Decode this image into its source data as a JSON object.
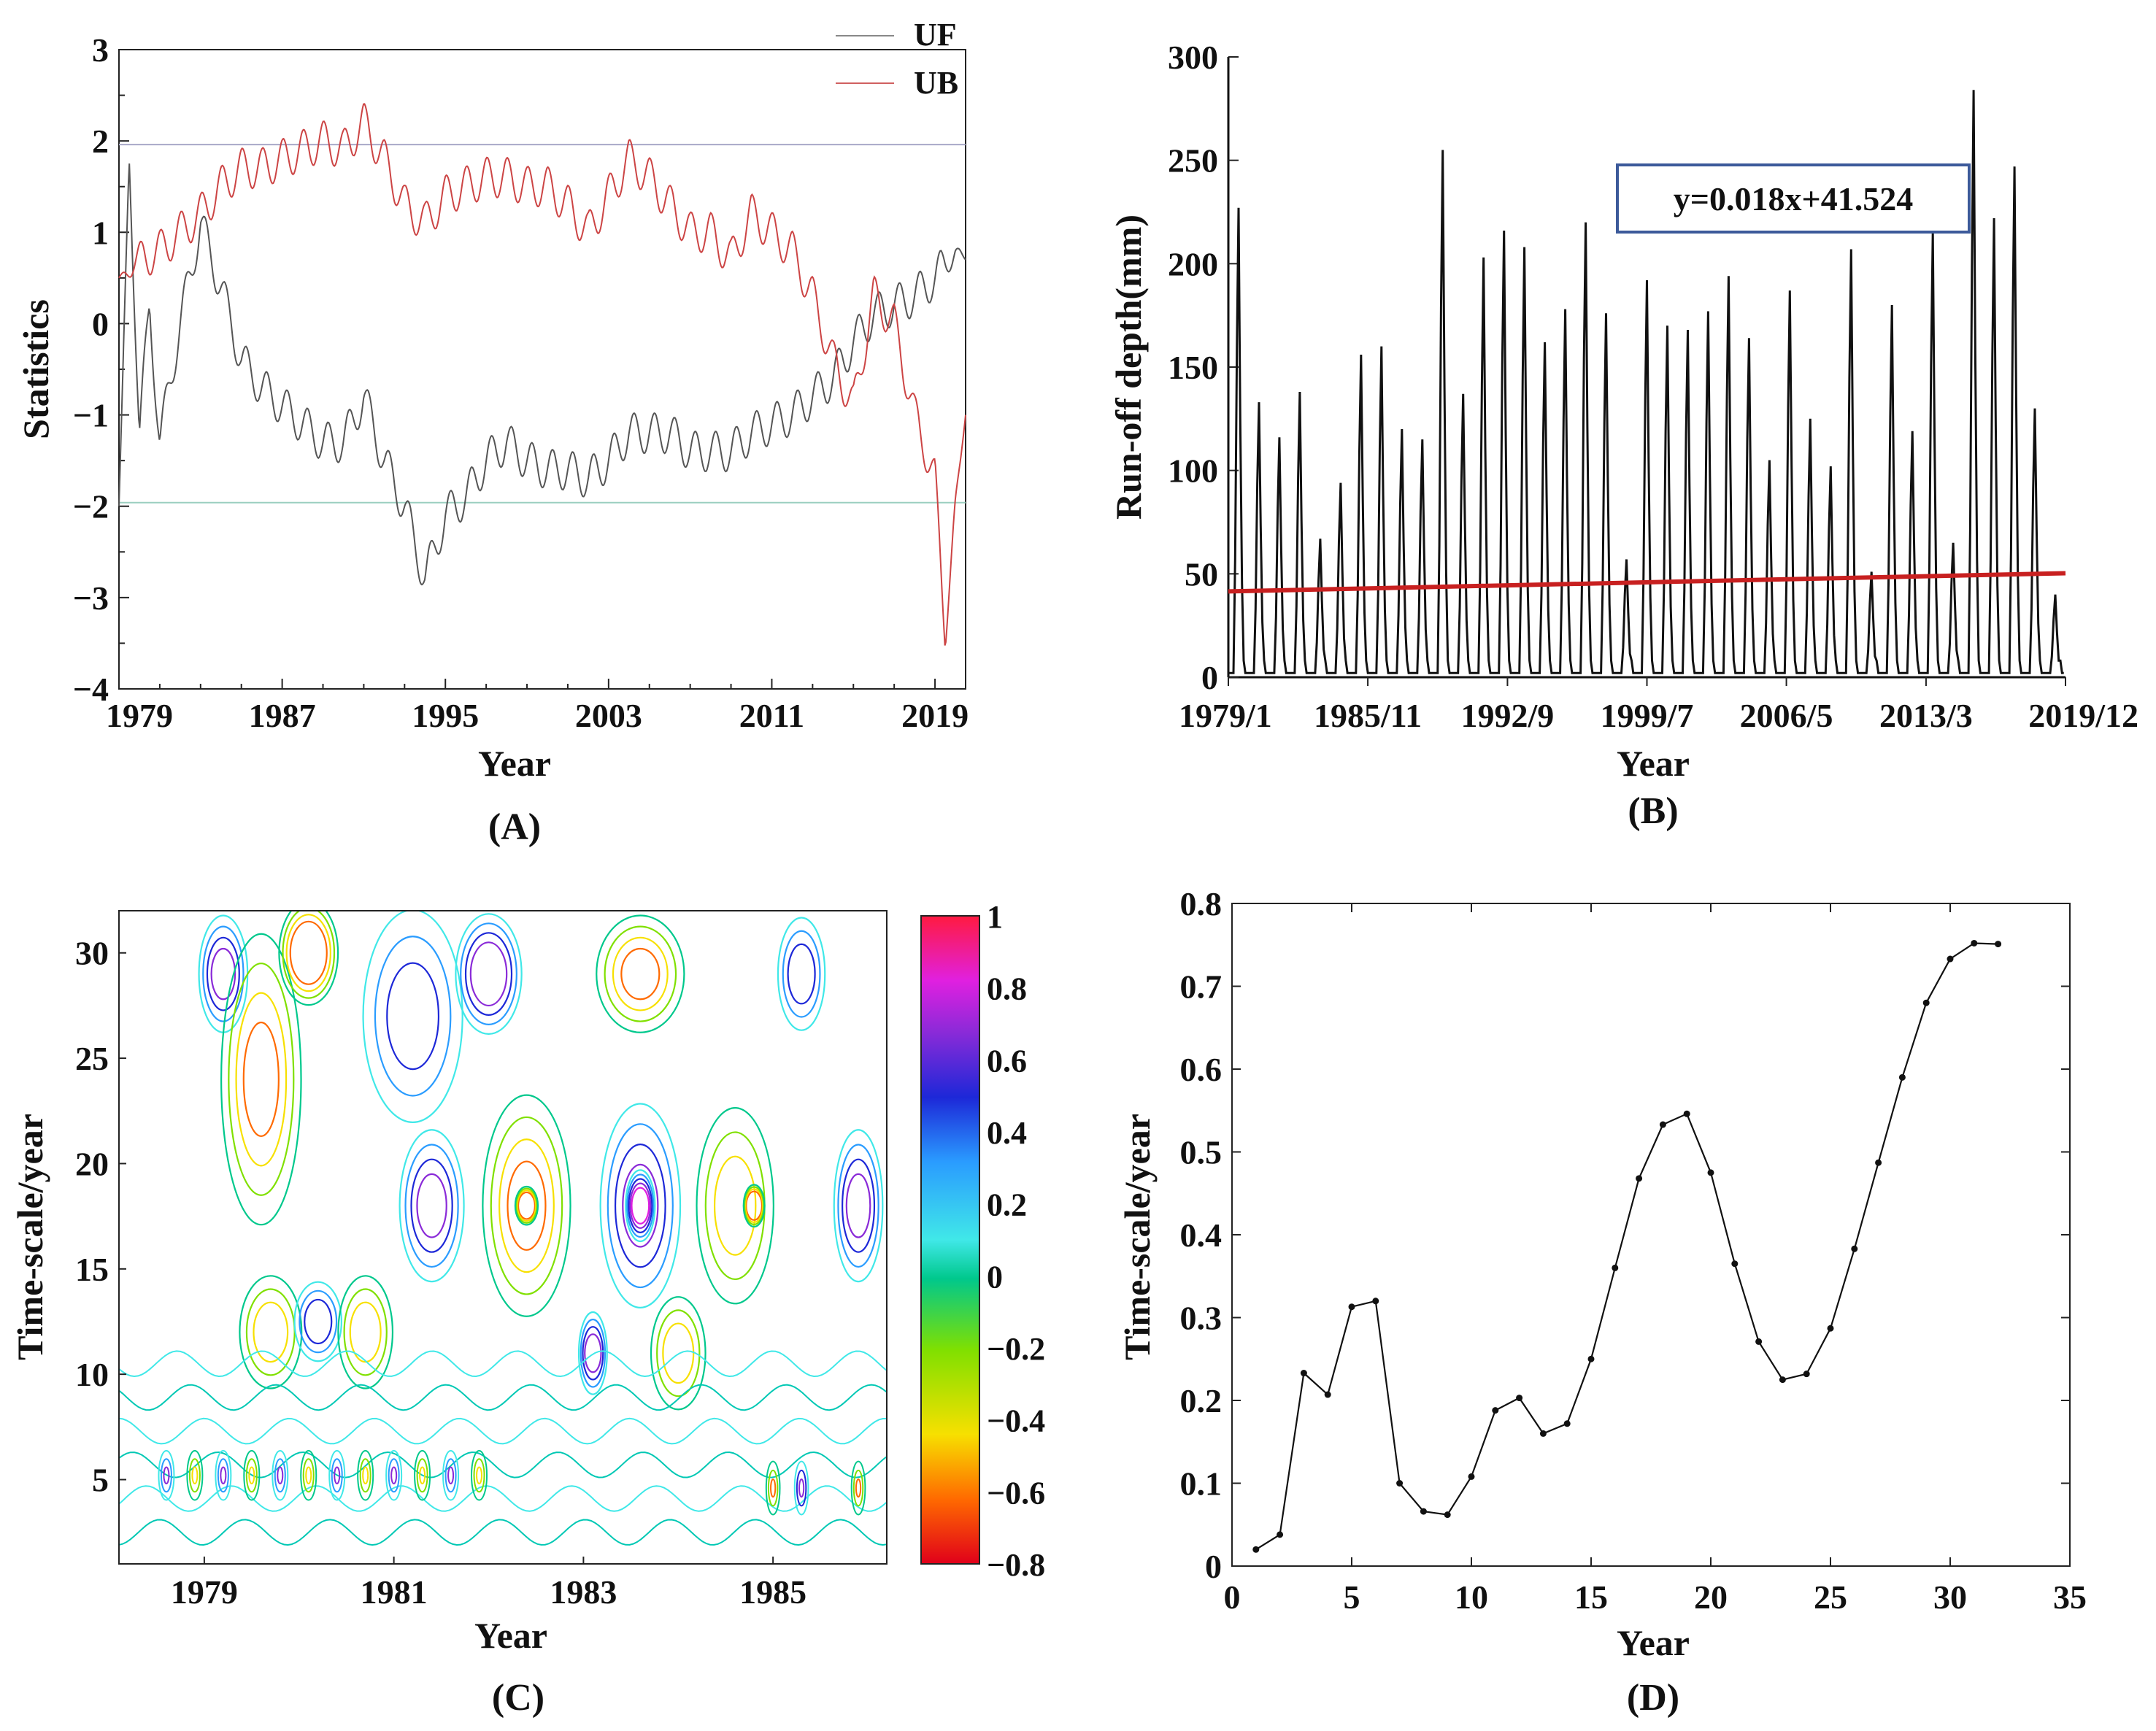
{
  "chart_data": [
    {
      "panel": "(A)",
      "type": "line",
      "xlabel": "Year",
      "ylabel": "Statistics",
      "xlim": [
        1979,
        2020.5
      ],
      "ylim": [
        -4,
        3
      ],
      "xticks": [
        "1979",
        "1987",
        "1995",
        "2003",
        "2011",
        "2019"
      ],
      "yticks": [
        "3",
        "2",
        "1",
        "0",
        "−1",
        "−2",
        "−3",
        "−4"
      ],
      "hlines": [
        1.96,
        -1.96
      ],
      "series": [
        {
          "name": "UF",
          "color": "#555555",
          "x": [
            1979,
            1979.5,
            1980,
            1980.5,
            1981,
            1982,
            1983,
            1984,
            1985,
            1986,
            1987,
            1988,
            1989,
            1990,
            1991,
            1992,
            1993,
            1994,
            1995,
            1996,
            1997,
            1998,
            1999,
            2000,
            2001,
            2002,
            2003,
            2004,
            2005,
            2006,
            2007,
            2008,
            2009,
            2010,
            2011,
            2012,
            2013,
            2014,
            2015,
            2016,
            2017,
            2018,
            2019,
            2020,
            2020.5
          ],
          "y": [
            -2.0,
            1.8,
            -1.2,
            0.2,
            -1.3,
            0.0,
            1.1,
            0.4,
            -0.4,
            -0.7,
            -0.9,
            -1.1,
            -1.3,
            -1.3,
            -0.8,
            -1.5,
            -2.0,
            -2.8,
            -2.1,
            -1.9,
            -1.5,
            -1.3,
            -1.5,
            -1.6,
            -1.6,
            -1.7,
            -1.5,
            -1.2,
            -1.2,
            -1.2,
            -1.4,
            -1.4,
            -1.4,
            -1.2,
            -1.1,
            -1.0,
            -0.8,
            -0.6,
            -0.2,
            0.1,
            0.2,
            0.3,
            0.5,
            0.8,
            0.7
          ]
        },
        {
          "name": "UB",
          "color": "#cc4444",
          "x": [
            1979,
            1980,
            1981,
            1982,
            1983,
            1984,
            1985,
            1986,
            1987,
            1988,
            1989,
            1990,
            1991,
            1992,
            1993,
            1994,
            1995,
            1996,
            1997,
            1998,
            1999,
            2000,
            2001,
            2002,
            2003,
            2004,
            2005,
            2006,
            2007,
            2008,
            2009,
            2010,
            2011,
            2012,
            2013,
            2014,
            2015,
            2016,
            2017,
            2018,
            2019,
            2019.5,
            2020,
            2020.5
          ],
          "y": [
            0.5,
            0.7,
            0.8,
            1.0,
            1.2,
            1.5,
            1.7,
            1.7,
            1.8,
            1.9,
            2.0,
            1.9,
            2.2,
            1.8,
            1.3,
            1.1,
            1.4,
            1.5,
            1.6,
            1.6,
            1.5,
            1.5,
            1.3,
            1.0,
            1.4,
            1.8,
            1.6,
            1.3,
            1.0,
            1.0,
            0.7,
            1.2,
            1.0,
            0.8,
            0.3,
            -0.4,
            -0.9,
            0.3,
            0.0,
            -1.0,
            -1.7,
            -3.4,
            -2.0,
            -1.0
          ]
        }
      ]
    },
    {
      "panel": "(B)",
      "type": "line",
      "xlabel": "Year",
      "ylabel": "Run-off depth(mm)",
      "xlim": [
        1979,
        2020
      ],
      "ylim": [
        0,
        300
      ],
      "xticks": [
        "1979/1",
        "1985/11",
        "1992/9",
        "1999/7",
        "2006/5",
        "2013/3",
        "2019/12"
      ],
      "yticks": [
        "300",
        "250",
        "200",
        "150",
        "100",
        "50",
        "0"
      ],
      "annual_peaks_mm": [
        227,
        133,
        116,
        138,
        67,
        94,
        156,
        160,
        120,
        115,
        255,
        137,
        203,
        216,
        208,
        162,
        178,
        220,
        176,
        57,
        192,
        170,
        168,
        177,
        194,
        164,
        105,
        187,
        125,
        102,
        207,
        51,
        180,
        119,
        215,
        65,
        284,
        222,
        247,
        130,
        40
      ],
      "trend": {
        "equation": "y=0.018x+41.524",
        "start": 41.5,
        "end": 50.3,
        "color": "#c82020"
      }
    },
    {
      "panel": "(C)",
      "type": "contour",
      "xlabel": "Year",
      "ylabel": "Time-scale/year",
      "xlim": [
        1978.1,
        1986.2
      ],
      "ylim": [
        1,
        32
      ],
      "xticks": [
        "1979",
        "1981",
        "1983",
        "1985"
      ],
      "yticks": [
        "30",
        "25",
        "20",
        "15",
        "10",
        "5"
      ],
      "colorbar": {
        "range": [
          -0.8,
          1
        ],
        "ticks": [
          "1",
          "0.8",
          "0.6",
          "0.4",
          "0.2",
          "0",
          "−0.2",
          "−0.4",
          "−0.6",
          "−0.8"
        ],
        "colors": [
          "#e0001a",
          "#ff6a00",
          "#f7e000",
          "#80e000",
          "#00c88c",
          "#40e8e8",
          "#2a9cff",
          "#1d28d8",
          "#8a2ad8",
          "#e020e0",
          "#ff1a40"
        ]
      }
    },
    {
      "panel": "(D)",
      "type": "line",
      "xlabel": "Year",
      "ylabel": "Time-scale/year",
      "xlim": [
        0,
        35
      ],
      "ylim": [
        0,
        0.8
      ],
      "xticks": [
        "0",
        "5",
        "10",
        "15",
        "20",
        "25",
        "30",
        "35"
      ],
      "yticks": [
        "0.8",
        "0.7",
        "0.6",
        "0.5",
        "0.4",
        "0.3",
        "0.2",
        "0.1",
        "0"
      ],
      "x": [
        1,
        2,
        3,
        4,
        5,
        6,
        7,
        8,
        9,
        10,
        11,
        12,
        13,
        14,
        15,
        16,
        17,
        18,
        19,
        20,
        21,
        22,
        23,
        24,
        25,
        26,
        27,
        28,
        29,
        30,
        31,
        32
      ],
      "y": [
        0.02,
        0.038,
        0.233,
        0.207,
        0.313,
        0.32,
        0.1,
        0.066,
        0.062,
        0.108,
        0.188,
        0.203,
        0.16,
        0.172,
        0.25,
        0.36,
        0.468,
        0.533,
        0.546,
        0.475,
        0.365,
        0.271,
        0.225,
        0.232,
        0.287,
        0.383,
        0.487,
        0.59,
        0.68,
        0.733,
        0.752,
        0.751
      ]
    }
  ]
}
